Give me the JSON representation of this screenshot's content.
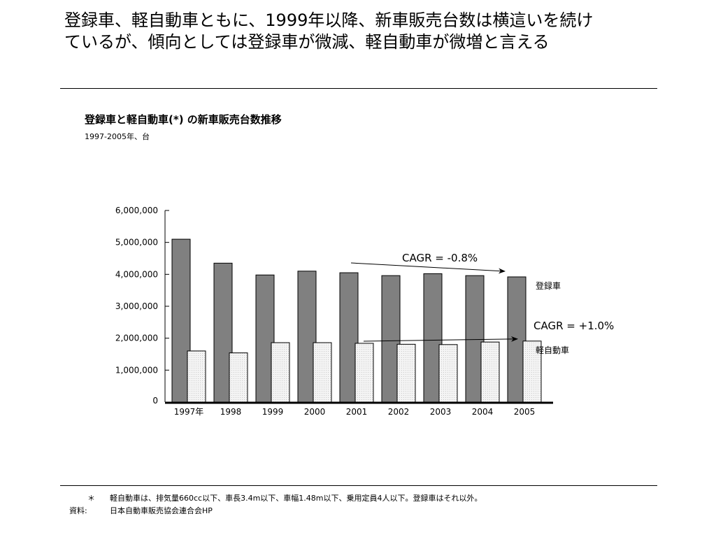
{
  "headline": "登録車、軽自動車ともに、1999年以降、新車販売台数は横這いを続け\nているが、傾向としては登録車が微減、軽自動車が微増と言える",
  "chart_data": {
    "type": "bar",
    "title": "登録車と軽自動車(*) の新車販売台数推移",
    "subtitle": "1997-2005年、台",
    "categories": [
      "1997年",
      "1998",
      "1999",
      "2000",
      "2001",
      "2002",
      "2003",
      "2004",
      "2005"
    ],
    "series": [
      {
        "name": "登録車",
        "color": "#808080",
        "values": [
          5100000,
          4350000,
          3980000,
          4100000,
          4050000,
          3960000,
          4020000,
          3960000,
          3920000
        ]
      },
      {
        "name": "軽自動車",
        "color": "#f2f2f2",
        "values": [
          1600000,
          1540000,
          1860000,
          1860000,
          1840000,
          1810000,
          1800000,
          1880000,
          1910000
        ]
      }
    ],
    "yticks": [
      "0",
      "1,000,000",
      "2,000,000",
      "3,000,000",
      "4,000,000",
      "5,000,000",
      "6,000,000"
    ],
    "ylim": [
      0,
      6000000
    ],
    "grid": false,
    "annotations": [
      {
        "text": "CAGR = -0.8%",
        "series": "登録車"
      },
      {
        "text": "CAGR = +1.0%",
        "series": "軽自動車"
      }
    ]
  },
  "footnote": {
    "mark": "＊",
    "text": "軽自動車は、排気量660cc以下、車長3.4m以下、車幅1.48m以下、乗用定員4人以下。登録車はそれ以外。",
    "source_label": "資料:",
    "source_text": "日本自動車販売協会連合会HP"
  }
}
